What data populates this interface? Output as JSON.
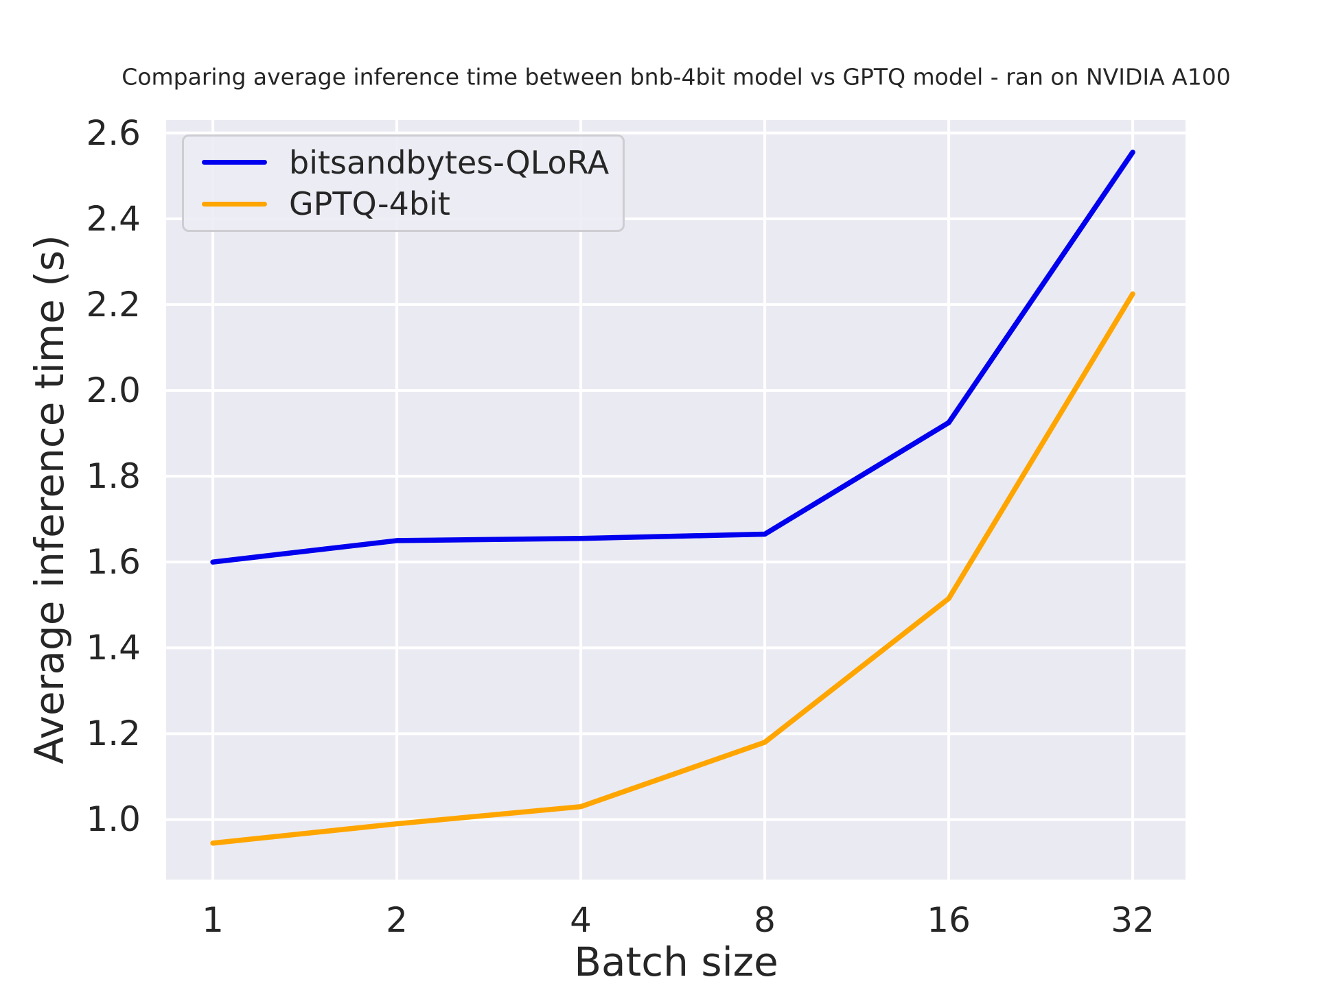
{
  "chart_data": {
    "type": "line",
    "title": "Comparing average inference time between bnb-4bit model vs GPTQ model - ran on NVIDIA A100",
    "xlabel": "Batch size",
    "ylabel": "Average inference time (s)",
    "x": [
      1,
      2,
      4,
      8,
      16,
      32
    ],
    "x_scale": "log2",
    "x_tick_labels": [
      "1",
      "2",
      "4",
      "8",
      "16",
      "32"
    ],
    "y_ticks": [
      1.0,
      1.2,
      1.4,
      1.6,
      1.8,
      2.0,
      2.2,
      2.4,
      2.6
    ],
    "ylim": [
      0.86,
      2.63
    ],
    "xlim_log2": [
      -0.254,
      5.287
    ],
    "grid": true,
    "legend_position": "upper left",
    "plot_bg_color": "#eaeaf2",
    "grid_color": "#ffffff",
    "text_color": "#262626",
    "series": [
      {
        "name": "bitsandbytes-QLoRA",
        "color": "#0000ee",
        "values": [
          1.6,
          1.65,
          1.655,
          1.665,
          1.925,
          2.555
        ]
      },
      {
        "name": "GPTQ-4bit",
        "color": "#ffa500",
        "values": [
          0.945,
          0.99,
          1.03,
          1.18,
          1.515,
          2.225
        ]
      }
    ]
  }
}
